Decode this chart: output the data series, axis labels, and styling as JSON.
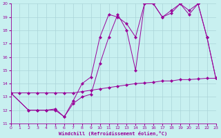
{
  "xlabel": "Windchill (Refroidissement éolien,°C)",
  "bg_color": "#c8f0f0",
  "line_color": "#990099",
  "grid_color": "#aad4d8",
  "xlim": [
    0,
    23
  ],
  "ylim": [
    11,
    20
  ],
  "xticks": [
    0,
    1,
    2,
    3,
    4,
    5,
    6,
    7,
    8,
    9,
    10,
    11,
    12,
    13,
    14,
    15,
    16,
    17,
    18,
    19,
    20,
    21,
    22,
    23
  ],
  "yticks": [
    11,
    12,
    13,
    14,
    15,
    16,
    17,
    18,
    19,
    20
  ],
  "line1_x": [
    0,
    1,
    2,
    3,
    4,
    5,
    6,
    7,
    8,
    9,
    10,
    11,
    12,
    13,
    14,
    15,
    16,
    17,
    18,
    19,
    20,
    21,
    22,
    23
  ],
  "line1_y": [
    13.3,
    13.3,
    13.3,
    13.3,
    13.3,
    13.3,
    13.3,
    13.3,
    13.4,
    13.5,
    13.6,
    13.7,
    13.8,
    13.9,
    14.0,
    14.05,
    14.1,
    14.2,
    14.2,
    14.3,
    14.3,
    14.35,
    14.4,
    14.4
  ],
  "line2_x": [
    0,
    2,
    3,
    4,
    5,
    6,
    7,
    8,
    9,
    10,
    11,
    12,
    13,
    14,
    15,
    16,
    17,
    18,
    19,
    20,
    21,
    22,
    23
  ],
  "line2_y": [
    13.3,
    12.0,
    12.0,
    12.0,
    12.0,
    11.5,
    12.5,
    13.0,
    13.2,
    15.5,
    17.5,
    19.2,
    18.0,
    15.0,
    20.0,
    20.0,
    19.0,
    19.5,
    20.0,
    19.2,
    20.0,
    17.5,
    14.4
  ],
  "line3_x": [
    0,
    2,
    3,
    4,
    5,
    6,
    7,
    8,
    9,
    10,
    11,
    12,
    13,
    14,
    15,
    16,
    17,
    18,
    19,
    20,
    21,
    22,
    23
  ],
  "line3_y": [
    13.3,
    12.0,
    12.0,
    12.0,
    12.1,
    11.5,
    12.7,
    14.0,
    14.5,
    17.5,
    19.2,
    19.0,
    18.5,
    17.5,
    20.0,
    20.0,
    19.0,
    19.3,
    20.0,
    19.5,
    20.0,
    17.5,
    14.4
  ]
}
